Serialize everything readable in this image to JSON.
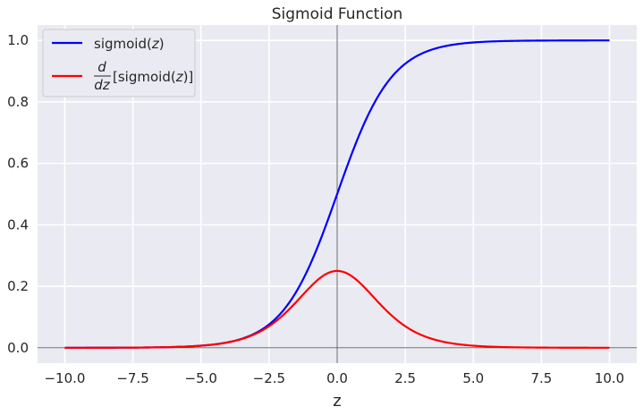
{
  "chart_data": {
    "type": "line",
    "title": "Sigmoid Function",
    "xlabel": "z",
    "ylabel": "",
    "xlim": [
      -11.0,
      11.0
    ],
    "ylim": [
      -0.05,
      1.05
    ],
    "grid": true,
    "legend": "top-left",
    "x_ticks": [
      -10.0,
      -7.5,
      -5.0,
      -2.5,
      0.0,
      2.5,
      5.0,
      7.5,
      10.0
    ],
    "x_tick_labels": [
      "−10.0",
      "−7.5",
      "−5.0",
      "−2.5",
      "0.0",
      "2.5",
      "5.0",
      "7.5",
      "10.0"
    ],
    "y_ticks": [
      0.0,
      0.2,
      0.4,
      0.6,
      0.8,
      1.0
    ],
    "y_tick_labels": [
      "0.0",
      "0.2",
      "0.4",
      "0.6",
      "0.8",
      "1.0"
    ],
    "x_range": [
      -10,
      10
    ],
    "reference_lines": [
      {
        "axis": "x",
        "value": 0
      },
      {
        "axis": "y",
        "value": 0
      }
    ],
    "series": [
      {
        "name": "sigmoid(z)",
        "color": "#0000ff",
        "x": [
          -10,
          -8,
          -6,
          -4,
          -3,
          -2,
          -1.5,
          -1,
          -0.5,
          0,
          0.5,
          1,
          1.5,
          2,
          3,
          4,
          6,
          8,
          10
        ],
        "y": [
          0.0,
          0.0003,
          0.0025,
          0.018,
          0.047,
          0.119,
          0.182,
          0.269,
          0.378,
          0.5,
          0.622,
          0.731,
          0.818,
          0.881,
          0.953,
          0.982,
          0.9975,
          0.9997,
          1.0
        ]
      },
      {
        "name": "d/dz[sigmoid(z)]",
        "color": "#ff0000",
        "x": [
          -10,
          -8,
          -6,
          -4,
          -3,
          -2,
          -1.5,
          -1,
          -0.5,
          0,
          0.5,
          1,
          1.5,
          2,
          3,
          4,
          6,
          8,
          10
        ],
        "y": [
          0.0,
          0.0003,
          0.0025,
          0.018,
          0.045,
          0.105,
          0.149,
          0.197,
          0.235,
          0.25,
          0.235,
          0.197,
          0.149,
          0.105,
          0.045,
          0.018,
          0.0025,
          0.0003,
          0.0
        ]
      }
    ],
    "legend_entries": {
      "sigmoid_prefix": "sigmoid(",
      "sigmoid_var": "z",
      "sigmoid_suffix": ")",
      "deriv_num": "d",
      "deriv_den": "dz",
      "deriv_prefix": "[sigmoid(",
      "deriv_var": "z",
      "deriv_suffix": ")]"
    },
    "colors": {
      "background": "#eaeaf2",
      "grid": "#ffffff",
      "reference": "#555555"
    }
  }
}
